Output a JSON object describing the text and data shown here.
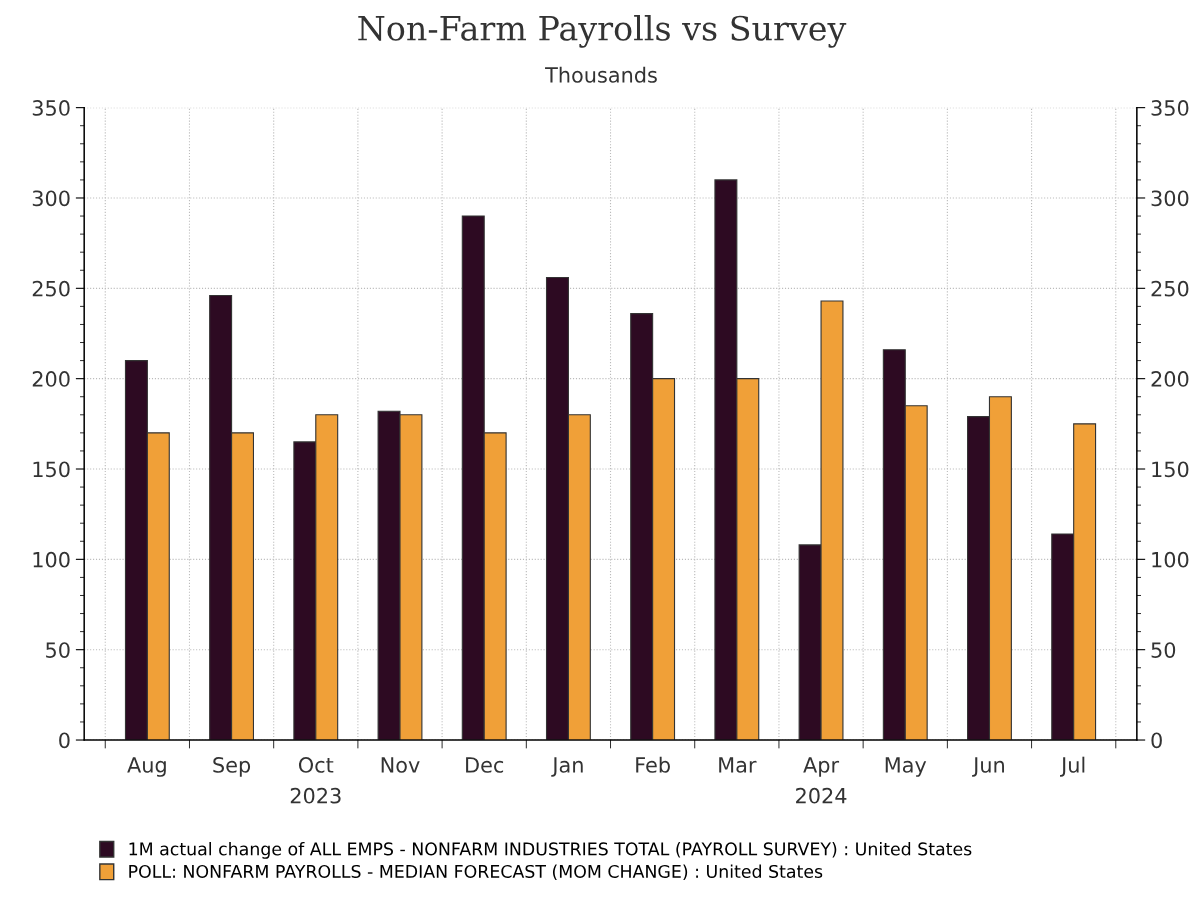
{
  "chart_data": {
    "type": "bar",
    "title": "Non-Farm Payrolls vs Survey",
    "subtitle": "Thousands",
    "categories": [
      "Aug",
      "Sep",
      "Oct",
      "Nov",
      "Dec",
      "Jan",
      "Feb",
      "Mar",
      "Apr",
      "May",
      "Jun",
      "Jul"
    ],
    "series": [
      {
        "name": "1M actual change of ALL EMPS - NONFARM INDUSTRIES TOTAL (PAYROLL SURVEY) : United States",
        "color": "#2d0a22",
        "values": [
          210,
          246,
          165,
          182,
          290,
          256,
          236,
          310,
          108,
          216,
          179,
          114
        ]
      },
      {
        "name": "POLL: NONFARM PAYROLLS - MEDIAN FORECAST (MOM CHANGE) : United States",
        "color": "#f0a038",
        "values": [
          170,
          170,
          180,
          180,
          170,
          180,
          200,
          200,
          243,
          185,
          190,
          175
        ]
      }
    ],
    "ylim": [
      0,
      350
    ],
    "yticks": [
      0,
      50,
      100,
      150,
      200,
      250,
      300,
      350
    ],
    "y2lim": [
      0,
      350
    ],
    "y2ticks": [
      0,
      50,
      100,
      150,
      200,
      250,
      300,
      350
    ],
    "annotations": [
      "2023",
      "2024"
    ],
    "grid": true,
    "legend": "bottom"
  }
}
